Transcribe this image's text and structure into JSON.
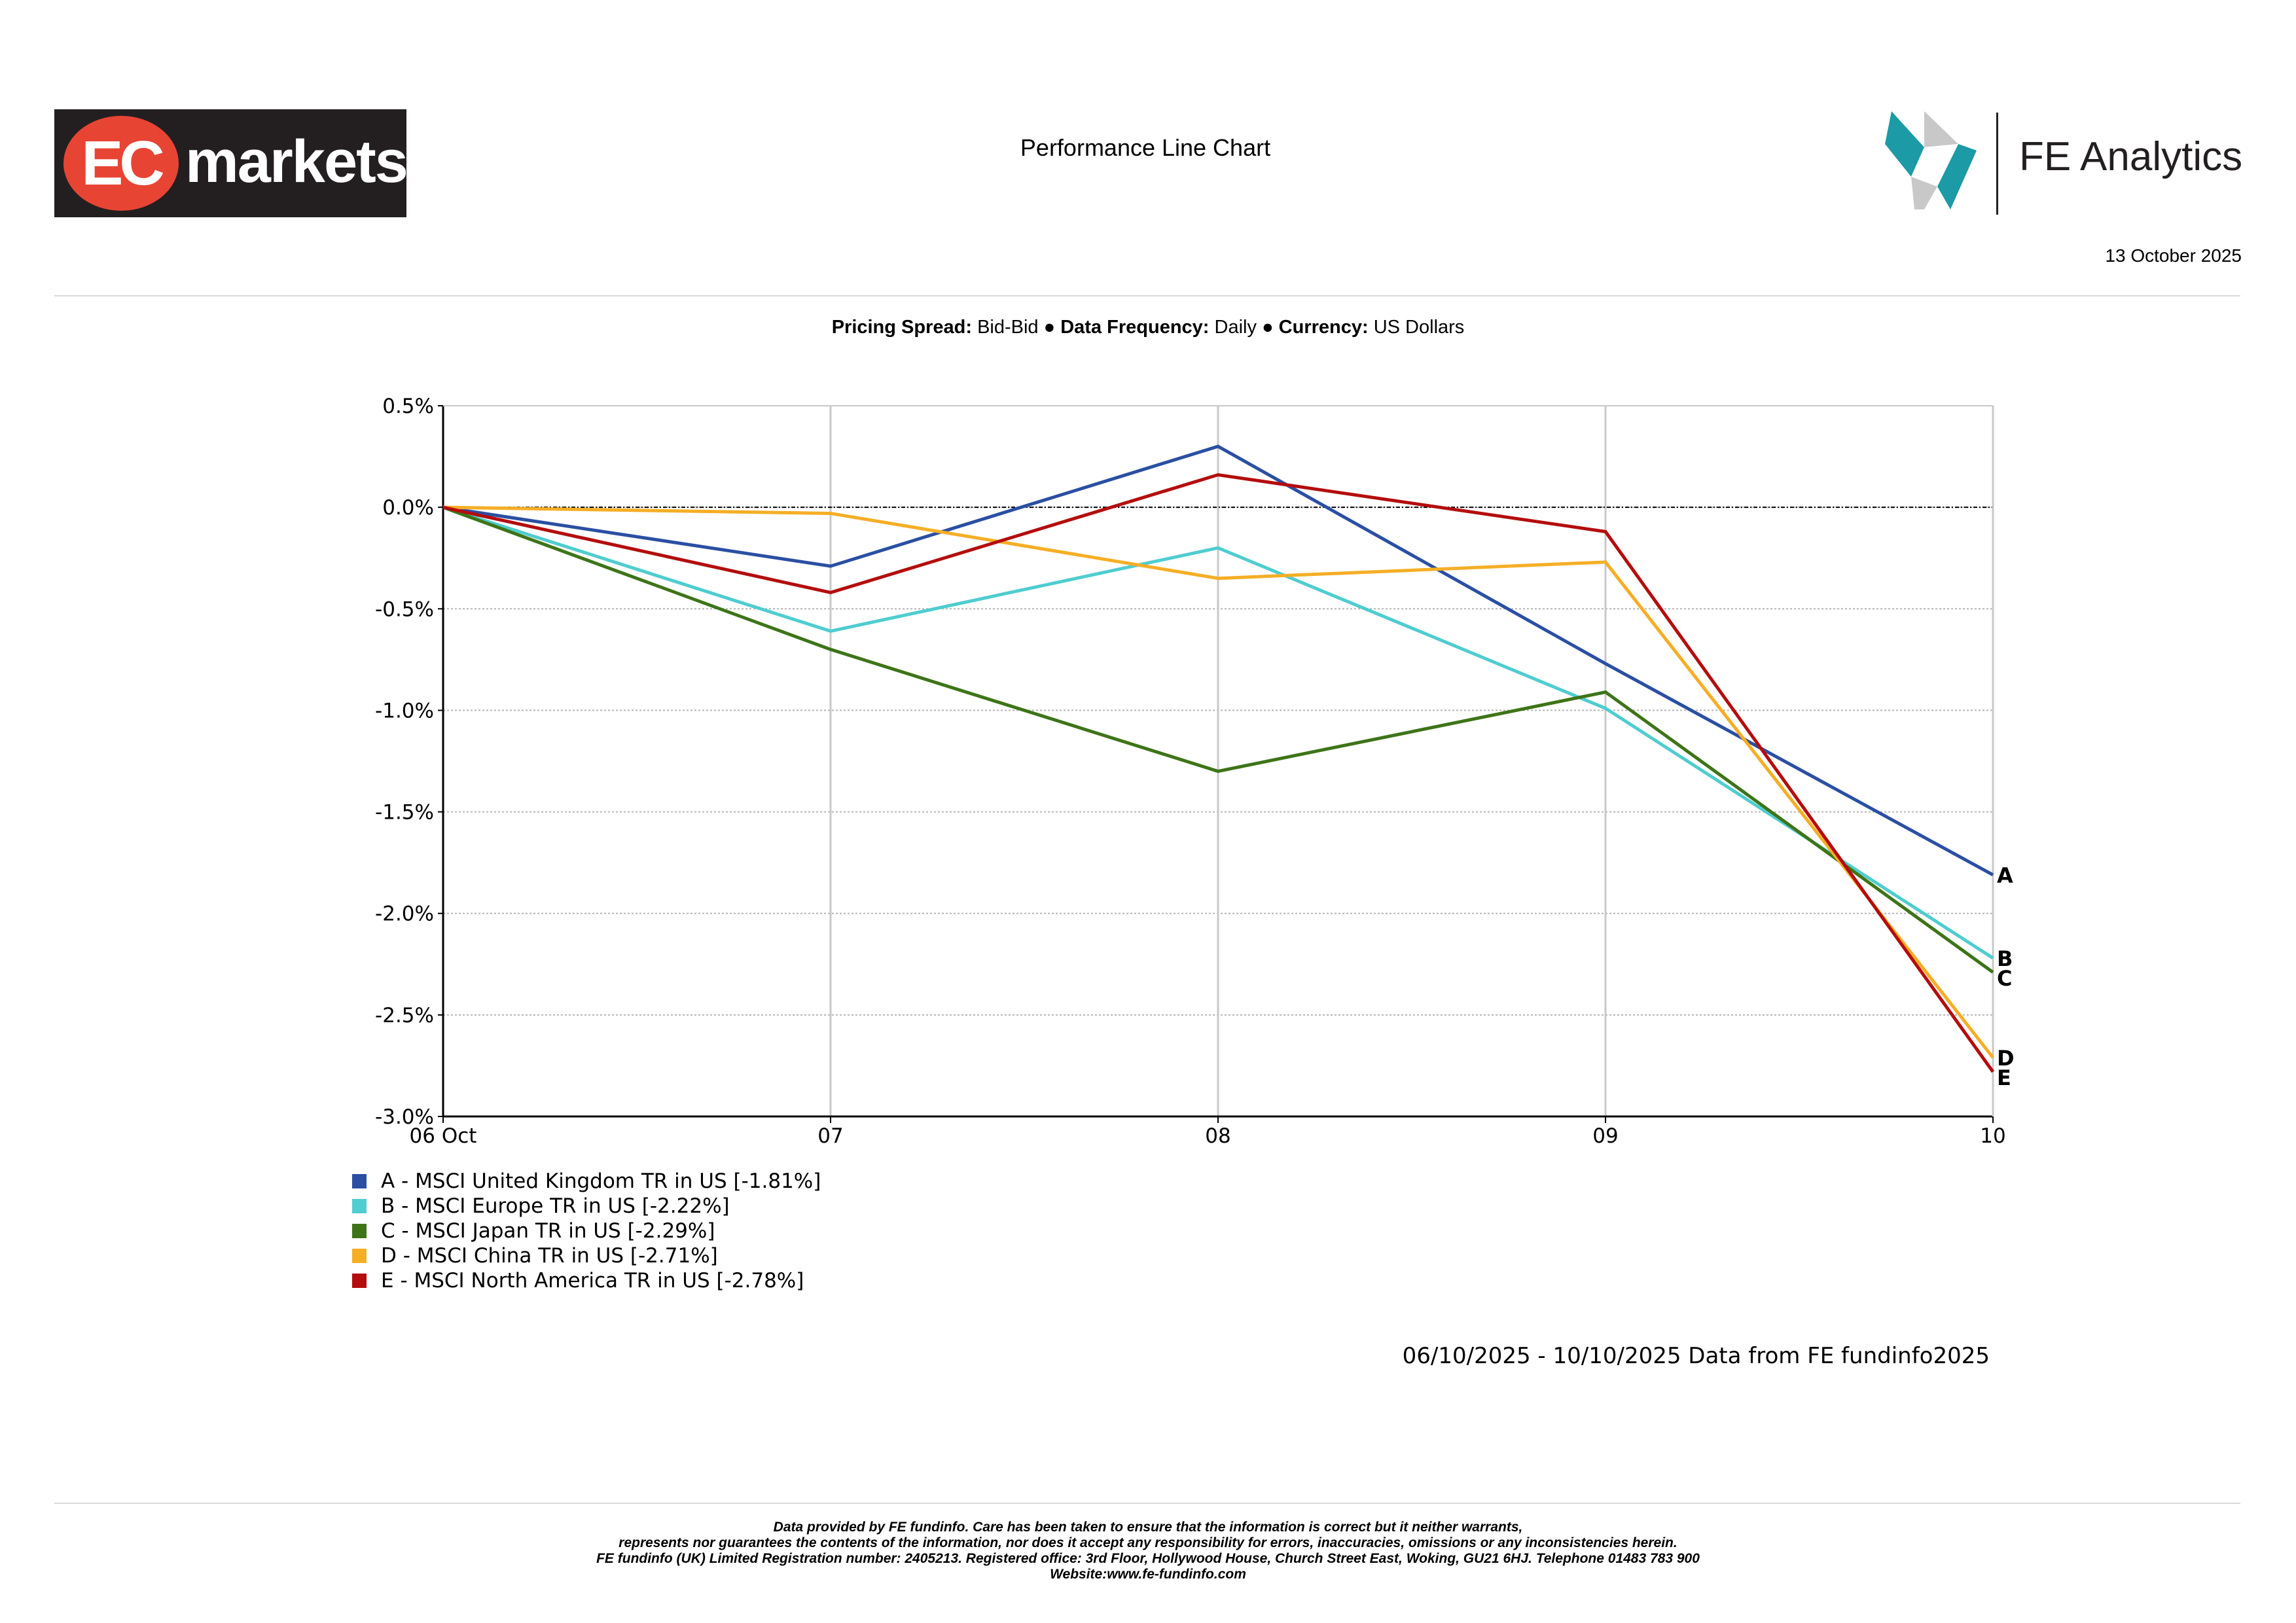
{
  "header": {
    "left_logo": {
      "text_part1": "EC",
      "text_part2": "markets"
    },
    "title": "Performance Line Chart",
    "right_logo": {
      "text": "FE Analytics"
    },
    "date": "13 October 2025"
  },
  "subtitle": {
    "pricing_label": "Pricing Spread:",
    "pricing_value": "Bid-Bid",
    "frequency_label": "Data Frequency:",
    "frequency_value": "Daily",
    "currency_label": "Currency:",
    "currency_value": "US Dollars",
    "separator": "●"
  },
  "chart_data": {
    "type": "line",
    "title": "",
    "xlabel": "",
    "ylabel": "",
    "categories": [
      "06 Oct",
      "07",
      "08",
      "09",
      "10"
    ],
    "y_ticks": [
      "0.5%",
      "0.0%",
      "-0.5%",
      "-1.0%",
      "-1.5%",
      "-2.0%",
      "-2.5%",
      "-3.0%"
    ],
    "ylim": [
      -3.0,
      0.5
    ],
    "grid": true,
    "series": [
      {
        "label": "A",
        "name": "A - MSCI United Kingdom TR in US [-1.81%]",
        "color": "#2a4fa3",
        "values": [
          0.0,
          -0.29,
          0.3,
          -0.77,
          -1.81
        ]
      },
      {
        "label": "B",
        "name": "B - MSCI Europe TR in US [-2.22%]",
        "color": "#4fcdd0",
        "values": [
          0.0,
          -0.61,
          -0.2,
          -0.99,
          -2.22
        ]
      },
      {
        "label": "C",
        "name": "C - MSCI Japan TR in US [-2.29%]",
        "color": "#3e7418",
        "values": [
          0.0,
          -0.7,
          -1.3,
          -0.91,
          -2.29
        ]
      },
      {
        "label": "D",
        "name": "D - MSCI China TR in US [-2.71%]",
        "color": "#f5ae25",
        "values": [
          0.0,
          -0.03,
          -0.35,
          -0.27,
          -2.71
        ]
      },
      {
        "label": "E",
        "name": "E - MSCI North America TR in US [-2.78%]",
        "color": "#b40d0d",
        "values": [
          0.0,
          -0.42,
          0.16,
          -0.12,
          -2.78
        ]
      }
    ]
  },
  "date_range": "06/10/2025 - 10/10/2025 Data from FE fundinfo2025",
  "disclaimer": {
    "line1": "Data provided by FE fundinfo. Care has been taken to ensure that the information is correct but it neither warrants,",
    "line2": "represents nor guarantees the contents of the information, nor does it accept any responsibility for errors, inaccuracies, omissions or any inconsistencies herein.",
    "line3": "FE fundinfo (UK) Limited Registration number: 2405213. Registered office: 3rd Floor, Hollywood House, Church Street East, Woking, GU21 6HJ. Telephone 01483 783 900",
    "line4": "Website:www.fe-fundinfo.com"
  }
}
